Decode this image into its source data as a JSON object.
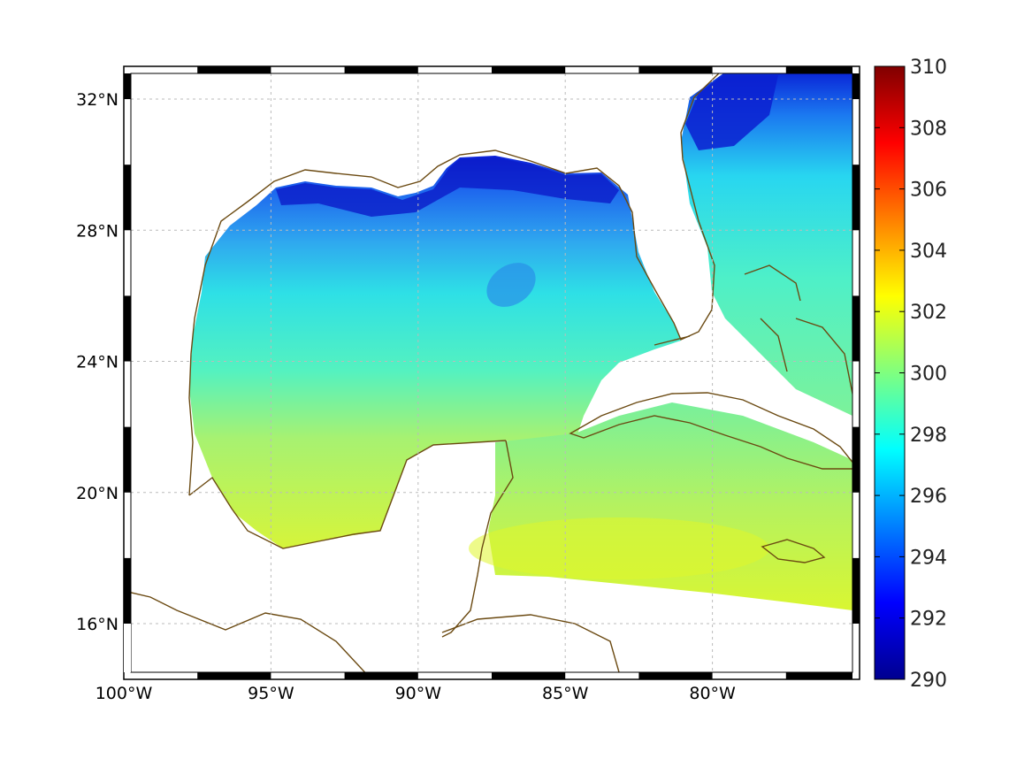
{
  "chart_data": {
    "type": "heatmap",
    "title": "",
    "xlabel": "",
    "ylabel": "",
    "projection": "geographic lon/lat map with coastlines",
    "lon_range": [
      -100,
      -75
    ],
    "lat_range": [
      14.3,
      33
    ],
    "x_ticks": [
      {
        "value": -100,
        "label": "100°W"
      },
      {
        "value": -95,
        "label": "95°W"
      },
      {
        "value": -90,
        "label": "90°W"
      },
      {
        "value": -85,
        "label": "85°W"
      },
      {
        "value": -80,
        "label": "80°W"
      }
    ],
    "y_ticks": [
      {
        "value": 32,
        "label": "32°N"
      },
      {
        "value": 28,
        "label": "28°N"
      },
      {
        "value": 24,
        "label": "24°N"
      },
      {
        "value": 20,
        "label": "20°N"
      },
      {
        "value": 16,
        "label": "16°N"
      }
    ],
    "grid": true,
    "colormap": "jet",
    "colorbar": {
      "min": 290,
      "max": 310,
      "ticks": [
        "290",
        "292",
        "294",
        "296",
        "298",
        "300",
        "302",
        "304",
        "306",
        "308",
        "310"
      ]
    },
    "colors": {
      "coastline": "#6b4a12",
      "frame": "#000000",
      "grid": "#bbbbbb"
    },
    "field_description": "sea surface temperature field over Gulf of Mexico and NW Caribbean, cool (~291-295) along northern Gulf coast, ~297-300 central Gulf, ~301-302 in Caribbean south of Cuba"
  }
}
